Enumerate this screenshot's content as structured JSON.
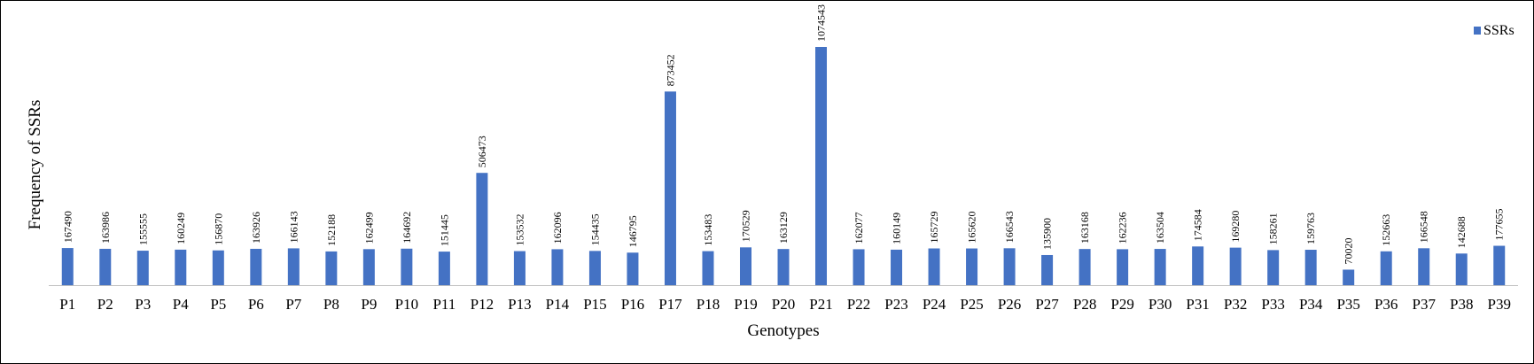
{
  "chart_data": {
    "type": "bar",
    "categories": [
      "P1",
      "P2",
      "P3",
      "P4",
      "P5",
      "P6",
      "P7",
      "P8",
      "P9",
      "P10",
      "P11",
      "P12",
      "P13",
      "P14",
      "P15",
      "P16",
      "P17",
      "P18",
      "P19",
      "P20",
      "P21",
      "P22",
      "P23",
      "P24",
      "P25",
      "P26",
      "P27",
      "P28",
      "P29",
      "P30",
      "P31",
      "P32",
      "P33",
      "P34",
      "P35",
      "P36",
      "P37",
      "P38",
      "P39"
    ],
    "series": [
      {
        "name": "SSRs",
        "values": [
          167490,
          163986,
          155555,
          160249,
          156870,
          163926,
          166143,
          152188,
          162499,
          164692,
          151445,
          506473,
          153532,
          162096,
          154435,
          146795,
          873452,
          153483,
          170529,
          163129,
          1074543,
          162077,
          160149,
          165729,
          165620,
          166543,
          135900,
          163168,
          162236,
          163504,
          174584,
          169280,
          158261,
          159763,
          70020,
          152663,
          166548,
          142688,
          177655
        ]
      }
    ],
    "title": "",
    "xlabel": "Genotypes",
    "ylabel": "Frequency of SSRs",
    "ylim": [
      0,
      1100000
    ],
    "grid": false,
    "legend": "top-right",
    "bar_color": "#4472C4"
  }
}
